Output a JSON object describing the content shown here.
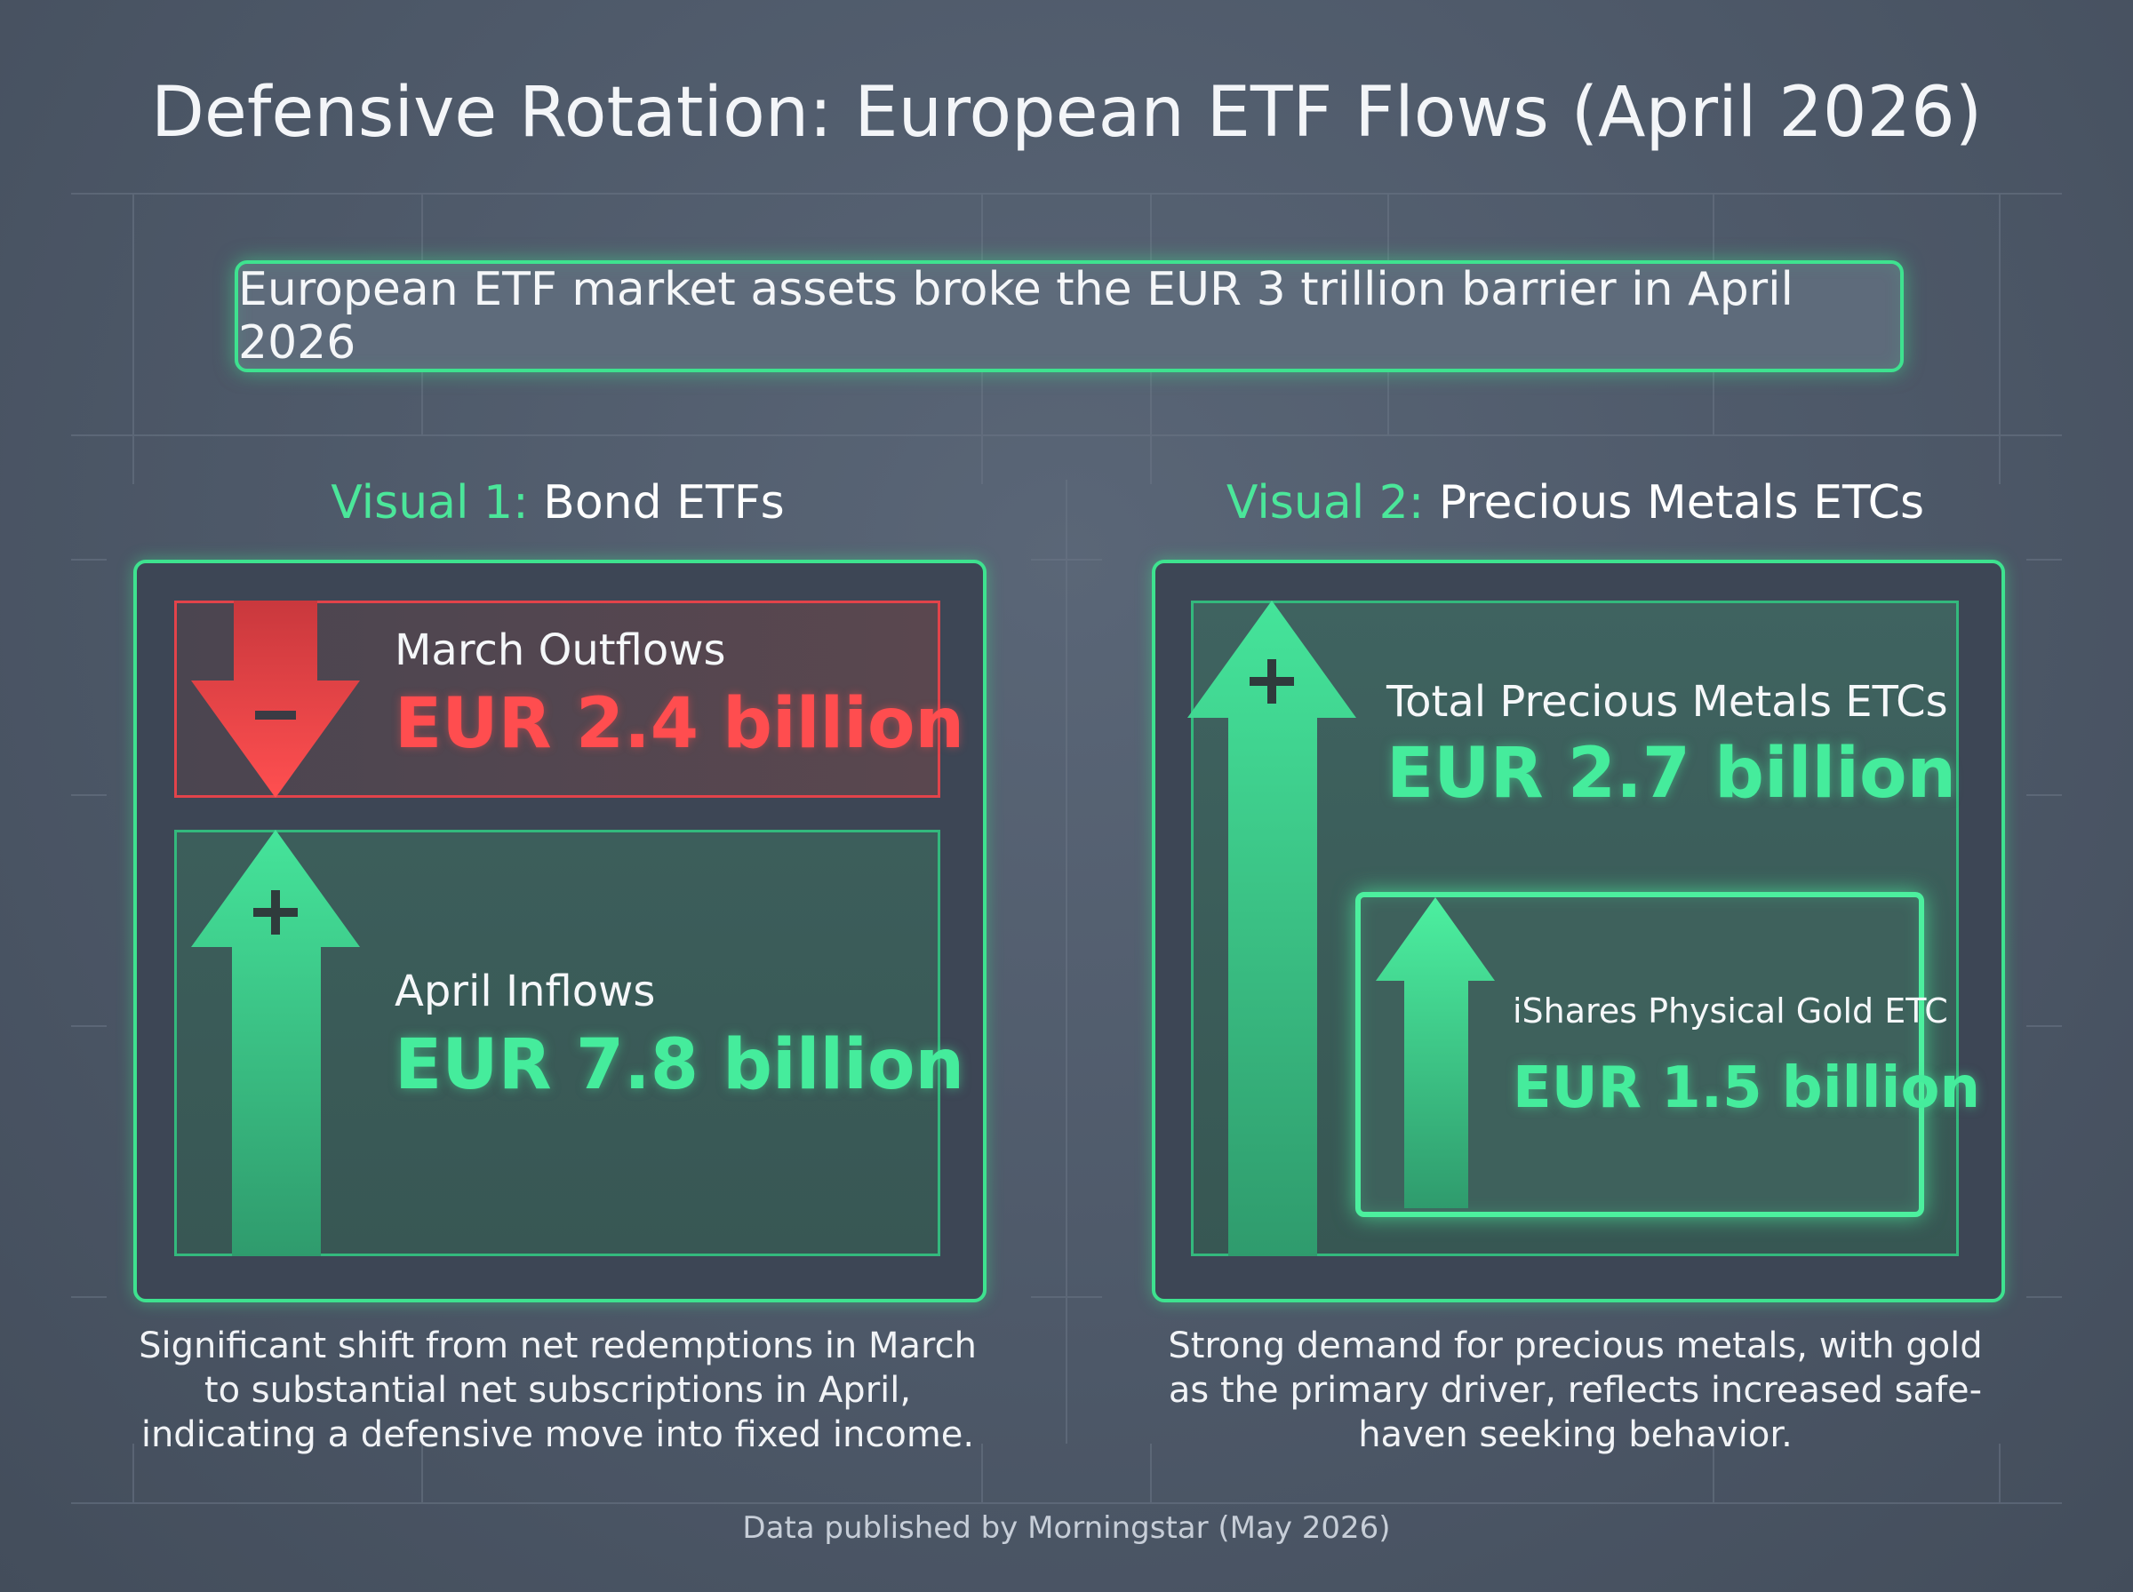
{
  "title": "Defensive Rotation: European ETF Flows (April 2026)",
  "banner": "European ETF market assets broke the EUR 3 trillion barrier in April 2026",
  "visual1": {
    "prefix": "Visual 1:",
    "title": "Bond ETFs",
    "outflow_label": "March Outflows",
    "outflow_value": "EUR 2.4 billion",
    "inflow_label": "April Inflows",
    "inflow_value": "EUR 7.8 billion",
    "caption": "Significant shift from net redemptions in March to substantial net subscriptions in April, indicating a defensive move into fixed income."
  },
  "visual2": {
    "prefix": "Visual 2:",
    "title": "Precious Metals ETCs",
    "total_label": "Total Precious Metals ETCs",
    "total_value": "EUR 2.7 billion",
    "gold_label": "iShares Physical Gold ETC",
    "gold_value": "EUR 1.5 billion",
    "caption": "Strong demand for precious metals, with gold as the primary driver, reflects increased safe-haven seeking behavior."
  },
  "footer": "Data published by Morningstar (May 2026)",
  "colors": {
    "accent_green": "#3ee28f",
    "outflow_red": "#ff4d4f",
    "background": "#4d5868"
  },
  "icons": {
    "minus": "minus-icon",
    "plus": "plus-icon",
    "down_arrow": "down-arrow-icon",
    "up_arrow": "up-arrow-icon"
  }
}
